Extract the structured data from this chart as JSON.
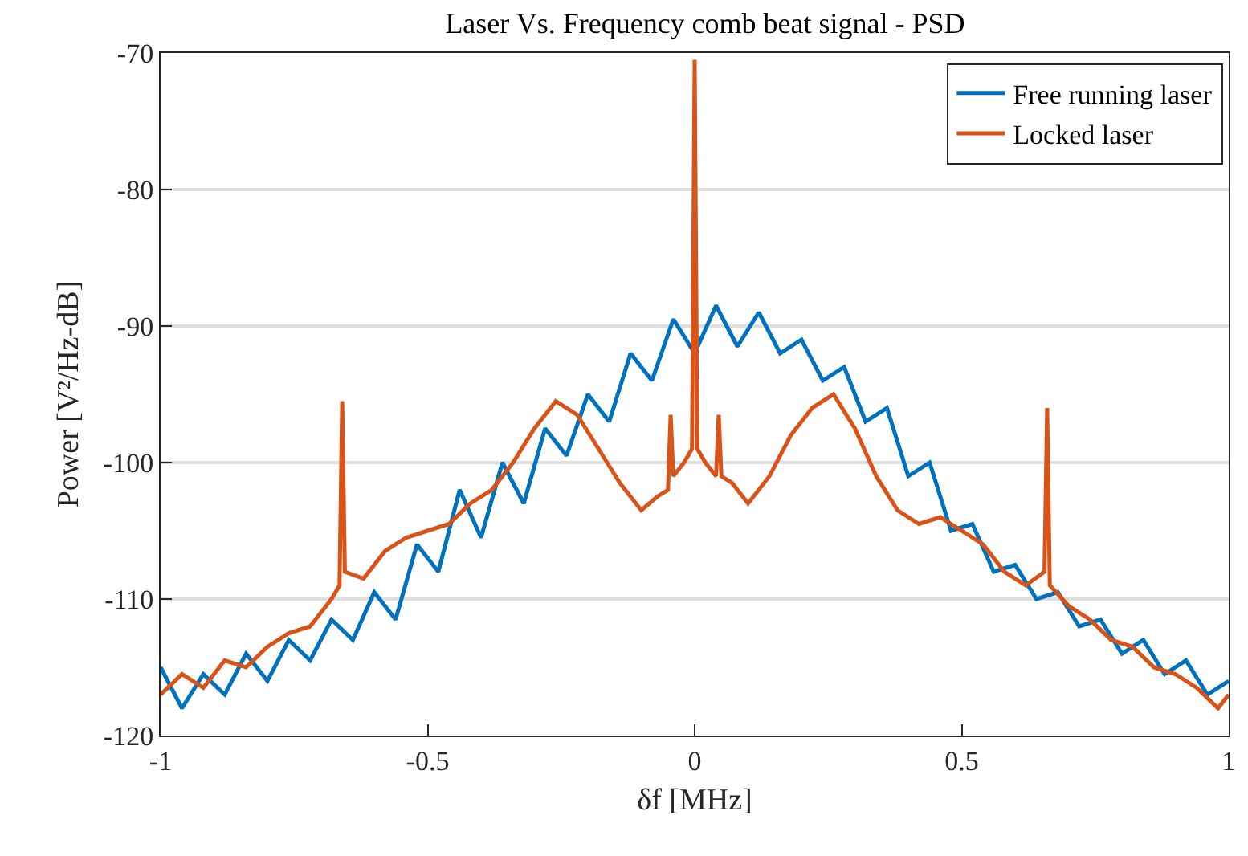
{
  "chart_data": {
    "type": "line",
    "title": "Laser Vs. Frequency comb beat signal - PSD",
    "xlabel": "δf [MHz]",
    "ylabel": "Power [V²/Hz-dB]",
    "xlim": [
      -1,
      1
    ],
    "xticks": [
      -1,
      -0.5,
      0,
      0.5,
      1
    ],
    "ylim": [
      -120,
      -70
    ],
    "yticks": [
      -120,
      -110,
      -100,
      -90,
      -80,
      -70
    ],
    "grid": "y",
    "legend": "top right",
    "line_style": "solid",
    "marker": "none",
    "series": [
      {
        "name": "Free running laser",
        "color": "#0072bd",
        "x": [
          -1,
          -0.96,
          -0.92,
          -0.88,
          -0.84,
          -0.8,
          -0.76,
          -0.72,
          -0.68,
          -0.64,
          -0.6,
          -0.56,
          -0.52,
          -0.48,
          -0.44,
          -0.4,
          -0.36,
          -0.32,
          -0.28,
          -0.24,
          -0.2,
          -0.16,
          -0.12,
          -0.08,
          -0.04,
          0,
          0.04,
          0.08,
          0.12,
          0.16,
          0.2,
          0.24,
          0.28,
          0.32,
          0.36,
          0.4,
          0.44,
          0.48,
          0.52,
          0.56,
          0.6,
          0.64,
          0.68,
          0.72,
          0.76,
          0.8,
          0.84,
          0.88,
          0.92,
          0.96,
          1
        ],
        "values": [
          -115,
          -118,
          -115.5,
          -117,
          -114,
          -116,
          -113,
          -114.5,
          -111.5,
          -113,
          -109.5,
          -111.5,
          -106,
          -108,
          -102,
          -105.5,
          -100,
          -103,
          -97.5,
          -99.5,
          -95,
          -97,
          -92,
          -94,
          -89.5,
          -92,
          -88.5,
          -91.5,
          -89,
          -92,
          -91,
          -94,
          -93,
          -97,
          -96,
          -101,
          -100,
          -105,
          -104.5,
          -108,
          -107.5,
          -110,
          -109.5,
          -112,
          -111.5,
          -114,
          -113,
          -115.5,
          -114.5,
          -117,
          -116
        ]
      },
      {
        "name": "Locked laser",
        "color": "#d95319",
        "x": [
          -1,
          -0.96,
          -0.92,
          -0.88,
          -0.84,
          -0.8,
          -0.76,
          -0.72,
          -0.68,
          -0.665,
          -0.66,
          -0.655,
          -0.62,
          -0.58,
          -0.54,
          -0.5,
          -0.46,
          -0.42,
          -0.38,
          -0.34,
          -0.3,
          -0.26,
          -0.22,
          -0.18,
          -0.14,
          -0.1,
          -0.07,
          -0.05,
          -0.045,
          -0.04,
          -0.02,
          -0.005,
          0,
          0.005,
          0.02,
          0.04,
          0.045,
          0.05,
          0.07,
          0.1,
          0.14,
          0.18,
          0.22,
          0.26,
          0.3,
          0.34,
          0.38,
          0.42,
          0.46,
          0.5,
          0.54,
          0.58,
          0.62,
          0.655,
          0.66,
          0.665,
          0.7,
          0.74,
          0.78,
          0.82,
          0.86,
          0.9,
          0.94,
          0.98,
          1
        ],
        "values": [
          -117,
          -115.5,
          -116.5,
          -114.5,
          -115,
          -113.5,
          -112.5,
          -112,
          -110,
          -109,
          -95.5,
          -108,
          -108.5,
          -106.5,
          -105.5,
          -105,
          -104.5,
          -103,
          -102,
          -100,
          -97.5,
          -95.5,
          -96.5,
          -99,
          -101.5,
          -103.5,
          -102.5,
          -102,
          -96.5,
          -101,
          -100,
          -99,
          -70.5,
          -99,
          -100,
          -101,
          -96.5,
          -101,
          -101.5,
          -103,
          -101,
          -98,
          -96,
          -95,
          -97.5,
          -101,
          -103.5,
          -104.5,
          -104,
          -105,
          -106,
          -108,
          -109,
          -108,
          -96,
          -109,
          -110.5,
          -111.5,
          -113,
          -113.5,
          -115,
          -115.5,
          -116.5,
          -118,
          -117
        ]
      }
    ]
  }
}
